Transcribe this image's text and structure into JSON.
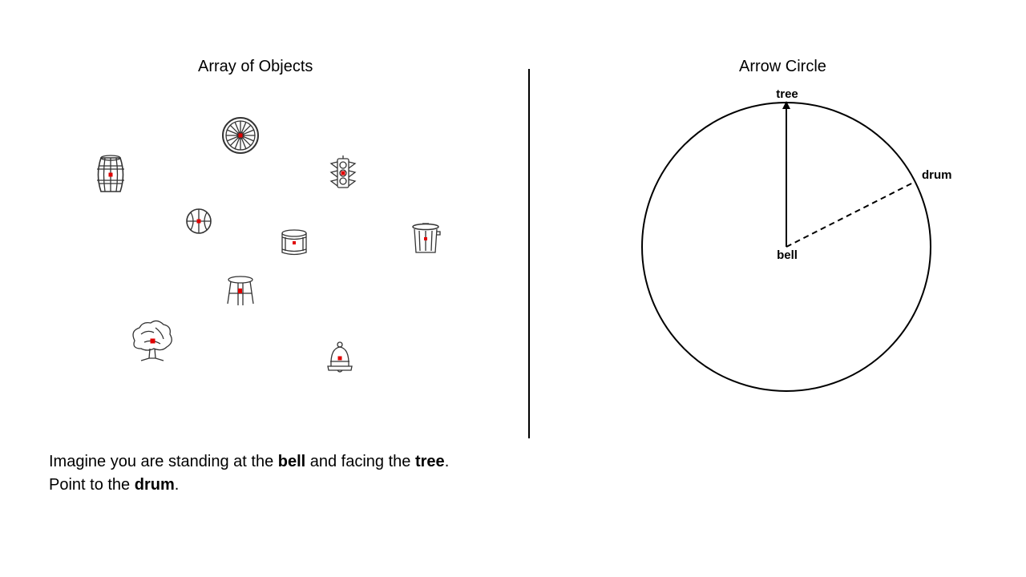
{
  "titles": {
    "left": "Array of Objects",
    "right": "Arrow Circle"
  },
  "objects": [
    {
      "name": "wheel",
      "icon": "wheel-icon"
    },
    {
      "name": "barrel",
      "icon": "barrel-icon"
    },
    {
      "name": "traffic light",
      "icon": "traffic-light-icon"
    },
    {
      "name": "basketball",
      "icon": "basketball-icon"
    },
    {
      "name": "drum",
      "icon": "drum-icon"
    },
    {
      "name": "trash can",
      "icon": "trash-can-icon"
    },
    {
      "name": "stool",
      "icon": "stool-icon"
    },
    {
      "name": "tree",
      "icon": "tree-icon"
    },
    {
      "name": "bell",
      "icon": "bell-icon"
    }
  ],
  "marker_color": "#e00000",
  "circle": {
    "top_label": "tree",
    "center_label": "bell",
    "target_label": "drum"
  },
  "instruction": {
    "line1_part1": "Imagine you are standing at the ",
    "standing_at": "bell",
    "line1_part2": " and facing the ",
    "facing": "tree",
    "line1_end": ".",
    "line2_part1": "Point to the ",
    "target": "drum",
    "line2_end": "."
  }
}
